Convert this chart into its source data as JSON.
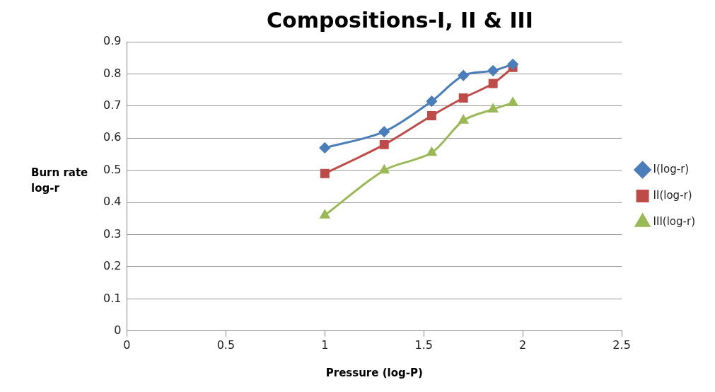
{
  "chart_data": {
    "type": "line",
    "title": "Compositions-I, II & III",
    "xlabel": "Pressure (log-P)",
    "ylabel": "Burn rate log-r",
    "x": [
      1,
      1.3,
      1.54,
      1.7,
      1.85,
      1.95
    ],
    "series": [
      {
        "name": "I(log-r)",
        "color": "#4a7ebb",
        "marker": "diamond",
        "values": [
          0.57,
          0.62,
          0.715,
          0.795,
          0.81,
          0.83
        ]
      },
      {
        "name": "II(log-r)",
        "color": "#be4b48",
        "marker": "square",
        "values": [
          0.49,
          0.58,
          0.67,
          0.725,
          0.77,
          0.82
        ]
      },
      {
        "name": "III(log-r)",
        "color": "#98b954",
        "marker": "triangle",
        "values": [
          0.36,
          0.5,
          0.555,
          0.655,
          0.69,
          0.71
        ]
      }
    ],
    "xlim": [
      0,
      2.5
    ],
    "xticks": [
      0,
      0.5,
      1,
      1.5,
      2,
      2.5
    ],
    "ylim": [
      0,
      0.9
    ],
    "yticks": [
      0,
      0.1,
      0.2,
      0.3,
      0.4,
      0.5,
      0.6,
      0.7,
      0.8,
      0.9
    ],
    "grid": "y",
    "legend": "right"
  }
}
